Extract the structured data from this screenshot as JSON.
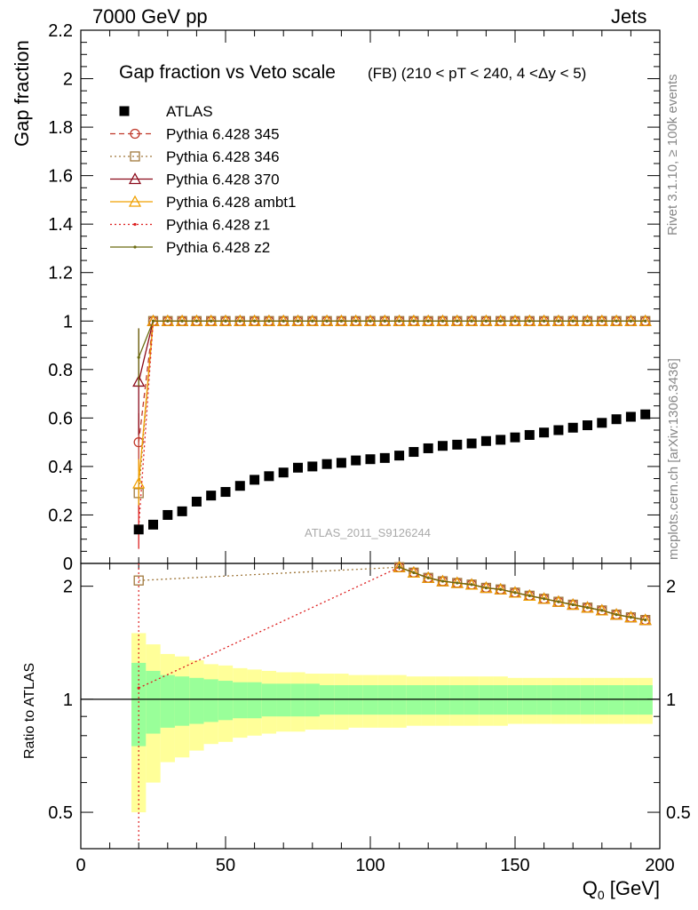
{
  "header": {
    "left": "7000 GeV pp",
    "right": "Jets",
    "side_top": "Rivet 3.1.10, ≥ 100k events",
    "side_bottom": "mcplots.cern.ch [arXiv:1306.3436]"
  },
  "colors": {
    "data": "#000000",
    "p345": "#c0392b",
    "p346": "#a0783c",
    "p370": "#8b0a1a",
    "ambt1": "#f0a000",
    "z1": "#dd2020",
    "z2": "#6b6b10",
    "band_inner": "#99ff99",
    "band_outer": "#ffff99"
  },
  "chart_data": {
    "type": "scatter",
    "title": "Gap fraction vs Veto scale",
    "subtitle": "(FB) (210 < pT < 240, 4 <Δy < 5)",
    "watermark": "ATLAS_2011_S9126244",
    "xlabel": "Q",
    "xlabel_sub": "0",
    "xlabel_unit": " [GeV]",
    "ylabel": "Gap fraction",
    "ratio_ylabel": "Ratio to ATLAS",
    "xlim": [
      0,
      200
    ],
    "ylim": [
      0,
      2.2
    ],
    "ratio_ylim": [
      0.4,
      2.3
    ],
    "ratio_log": true,
    "xticks": [
      "0",
      "50",
      "100",
      "150",
      "200"
    ],
    "yticks": [
      "0",
      "0.2",
      "0.4",
      "0.6",
      "0.8",
      "1",
      "1.2",
      "1.4",
      "1.6",
      "1.8",
      "2",
      "2.2"
    ],
    "ratio_yticks": [
      "0.5",
      "1",
      "2"
    ],
    "legend_position": "top-left",
    "x": [
      20,
      25,
      30,
      35,
      40,
      45,
      50,
      55,
      60,
      65,
      70,
      75,
      80,
      85,
      90,
      95,
      100,
      105,
      110,
      115,
      120,
      125,
      130,
      135,
      140,
      145,
      150,
      155,
      160,
      165,
      170,
      175,
      180,
      185,
      190,
      195
    ],
    "data": {
      "name": "ATLAS",
      "values": [
        0.14,
        0.16,
        0.2,
        0.215,
        0.255,
        0.28,
        0.295,
        0.32,
        0.345,
        0.36,
        0.375,
        0.395,
        0.4,
        0.41,
        0.415,
        0.425,
        0.43,
        0.435,
        0.445,
        0.46,
        0.475,
        0.485,
        0.49,
        0.495,
        0.505,
        0.51,
        0.52,
        0.53,
        0.54,
        0.55,
        0.56,
        0.57,
        0.58,
        0.595,
        0.605,
        0.615
      ],
      "rel_err_inner": [
        0.25,
        0.19,
        0.16,
        0.15,
        0.14,
        0.13,
        0.12,
        0.11,
        0.11,
        0.1,
        0.1,
        0.1,
        0.1,
        0.09,
        0.09,
        0.09,
        0.09,
        0.09,
        0.09,
        0.09,
        0.09,
        0.09,
        0.09,
        0.09,
        0.09,
        0.09,
        0.09,
        0.09,
        0.09,
        0.09,
        0.09,
        0.09,
        0.09,
        0.09,
        0.09,
        0.09
      ],
      "rel_err_outer": [
        0.5,
        0.4,
        0.32,
        0.3,
        0.27,
        0.24,
        0.23,
        0.21,
        0.2,
        0.19,
        0.18,
        0.18,
        0.17,
        0.17,
        0.17,
        0.16,
        0.16,
        0.16,
        0.16,
        0.15,
        0.15,
        0.15,
        0.15,
        0.15,
        0.15,
        0.15,
        0.14,
        0.14,
        0.14,
        0.14,
        0.14,
        0.14,
        0.14,
        0.14,
        0.14,
        0.14
      ]
    },
    "series": [
      {
        "name": "Pythia 6.428 345",
        "key": "p345",
        "first": 0.5,
        "first_err": 0.12,
        "style": "dashed",
        "marker": "circle"
      },
      {
        "name": "Pythia 6.428 346",
        "key": "p346",
        "first": 0.29,
        "first_err": 0.08,
        "style": "dotted",
        "marker": "square"
      },
      {
        "name": "Pythia 6.428 370",
        "key": "p370",
        "first": 0.75,
        "first_err": 0.22,
        "style": "solid",
        "marker": "triangle"
      },
      {
        "name": "Pythia 6.428 ambt1",
        "key": "ambt1",
        "first": 0.33,
        "first_err": 0.1,
        "style": "solid",
        "marker": "triangle"
      },
      {
        "name": "Pythia 6.428 z1",
        "key": "z1",
        "first": 0.15,
        "first_err": 0.09,
        "style": "dotted",
        "marker": "dot"
      },
      {
        "name": "Pythia 6.428 z2",
        "key": "z2",
        "first": 0.85,
        "first_err": 0.12,
        "style": "solid",
        "marker": "dot"
      }
    ],
    "mc_plateau": 1.0
  }
}
